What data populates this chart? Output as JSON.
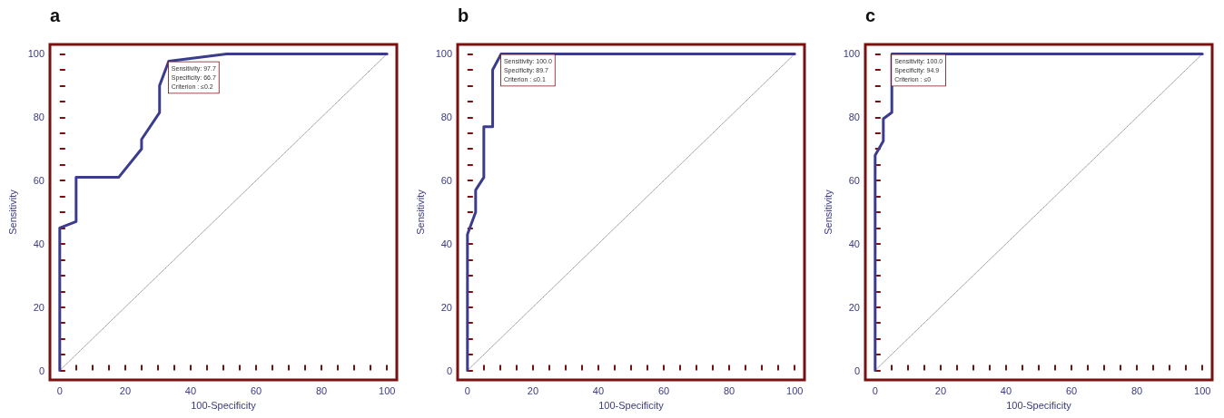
{
  "chart_data": [
    {
      "type": "line",
      "title": "a",
      "xlabel": "100-Specificity",
      "ylabel": "Sensitivity",
      "xlim": [
        -3,
        103
      ],
      "ylim": [
        -3,
        103
      ],
      "marker": "none",
      "line_style": "solid",
      "grid": false,
      "xticks": [
        0,
        {
          "value": 5,
          "label": null
        },
        {
          "value": 10,
          "label": null
        },
        {
          "value": 15,
          "label": null
        },
        20,
        {
          "value": 25,
          "label": null
        },
        {
          "value": 30,
          "label": null
        },
        {
          "value": 35,
          "label": null
        },
        40,
        {
          "value": 45,
          "label": null
        },
        {
          "value": 50,
          "label": null
        },
        {
          "value": 55,
          "label": null
        },
        60,
        {
          "value": 65,
          "label": null
        },
        {
          "value": 70,
          "label": null
        },
        {
          "value": 75,
          "label": null
        },
        80,
        {
          "value": 85,
          "label": null
        },
        {
          "value": 90,
          "label": null
        },
        {
          "value": 95,
          "label": null
        },
        100
      ],
      "yticks": [
        0,
        {
          "value": 5,
          "label": null
        },
        {
          "value": 10,
          "label": null
        },
        {
          "value": 15,
          "label": null
        },
        20,
        {
          "value": 25,
          "label": null
        },
        {
          "value": 30,
          "label": null
        },
        {
          "value": 35,
          "label": null
        },
        40,
        {
          "value": 45,
          "label": null
        },
        {
          "value": 50,
          "label": null
        },
        {
          "value": 55,
          "label": null
        },
        60,
        {
          "value": 65,
          "label": null
        },
        {
          "value": 70,
          "label": null
        },
        {
          "value": 75,
          "label": null
        },
        80,
        {
          "value": 85,
          "label": null
        },
        {
          "value": 90,
          "label": null
        },
        {
          "value": 95,
          "label": null
        },
        100
      ],
      "series": [
        {
          "color": "#3c3c8f",
          "x": [
            0,
            0,
            5,
            5,
            18,
            25,
            25,
            30.5,
            30.5,
            33.3,
            51,
            100
          ],
          "values": [
            0,
            45,
            47,
            61,
            61,
            70,
            73,
            81.5,
            90,
            97.7,
            100,
            100
          ]
        },
        {
          "color": "#9a9a9a",
          "line_style": "dotted",
          "x": [
            0,
            100
          ],
          "values": [
            0,
            100
          ]
        }
      ],
      "annotations": [
        {
          "text": "Sensitivity: 97.7\nSpecificity: 66.7\nCriterion : ≤0.2",
          "x": 33.3,
          "y": 97.7
        }
      ]
    },
    {
      "type": "line",
      "title": "b",
      "xlabel": "100-Specificity",
      "ylabel": "Sensitivity",
      "xlim": [
        -3,
        103
      ],
      "ylim": [
        -3,
        103
      ],
      "marker": "none",
      "line_style": "solid",
      "grid": false,
      "xticks": [
        0,
        {
          "value": 5,
          "label": null
        },
        {
          "value": 10,
          "label": null
        },
        {
          "value": 15,
          "label": null
        },
        20,
        {
          "value": 25,
          "label": null
        },
        {
          "value": 30,
          "label": null
        },
        {
          "value": 35,
          "label": null
        },
        40,
        {
          "value": 45,
          "label": null
        },
        {
          "value": 50,
          "label": null
        },
        {
          "value": 55,
          "label": null
        },
        60,
        {
          "value": 65,
          "label": null
        },
        {
          "value": 70,
          "label": null
        },
        {
          "value": 75,
          "label": null
        },
        80,
        {
          "value": 85,
          "label": null
        },
        {
          "value": 90,
          "label": null
        },
        {
          "value": 95,
          "label": null
        },
        100
      ],
      "yticks": [
        0,
        {
          "value": 5,
          "label": null
        },
        {
          "value": 10,
          "label": null
        },
        {
          "value": 15,
          "label": null
        },
        20,
        {
          "value": 25,
          "label": null
        },
        {
          "value": 30,
          "label": null
        },
        {
          "value": 35,
          "label": null
        },
        40,
        {
          "value": 45,
          "label": null
        },
        {
          "value": 50,
          "label": null
        },
        {
          "value": 55,
          "label": null
        },
        60,
        {
          "value": 65,
          "label": null
        },
        {
          "value": 70,
          "label": null
        },
        {
          "value": 75,
          "label": null
        },
        80,
        {
          "value": 85,
          "label": null
        },
        {
          "value": 90,
          "label": null
        },
        {
          "value": 95,
          "label": null
        },
        100
      ],
      "series": [
        {
          "color": "#3c3c8f",
          "x": [
            0,
            0,
            2.5,
            2.5,
            5,
            5,
            7.7,
            7.7,
            10.3,
            100
          ],
          "values": [
            0,
            43,
            50,
            57,
            61,
            77,
            77,
            95,
            100,
            100
          ]
        },
        {
          "color": "#9a9a9a",
          "line_style": "dotted",
          "x": [
            0,
            100
          ],
          "values": [
            0,
            100
          ]
        }
      ],
      "annotations": [
        {
          "text": "Sensitivity: 100.0\nSpecificity: 89.7\nCriterion : ≤0.1",
          "x": 10.3,
          "y": 100
        }
      ]
    },
    {
      "type": "line",
      "title": "c",
      "xlabel": "100-Specificity",
      "ylabel": "Sensitivity",
      "xlim": [
        -3,
        103
      ],
      "ylim": [
        -3,
        103
      ],
      "marker": "none",
      "line_style": "solid",
      "grid": false,
      "xticks": [
        0,
        {
          "value": 5,
          "label": null
        },
        {
          "value": 10,
          "label": null
        },
        {
          "value": 15,
          "label": null
        },
        20,
        {
          "value": 25,
          "label": null
        },
        {
          "value": 30,
          "label": null
        },
        {
          "value": 35,
          "label": null
        },
        40,
        {
          "value": 45,
          "label": null
        },
        {
          "value": 50,
          "label": null
        },
        {
          "value": 55,
          "label": null
        },
        60,
        {
          "value": 65,
          "label": null
        },
        {
          "value": 70,
          "label": null
        },
        {
          "value": 75,
          "label": null
        },
        80,
        {
          "value": 85,
          "label": null
        },
        {
          "value": 90,
          "label": null
        },
        {
          "value": 95,
          "label": null
        },
        100
      ],
      "yticks": [
        0,
        {
          "value": 5,
          "label": null
        },
        {
          "value": 10,
          "label": null
        },
        {
          "value": 15,
          "label": null
        },
        20,
        {
          "value": 25,
          "label": null
        },
        {
          "value": 30,
          "label": null
        },
        {
          "value": 35,
          "label": null
        },
        40,
        {
          "value": 45,
          "label": null
        },
        {
          "value": 50,
          "label": null
        },
        {
          "value": 55,
          "label": null
        },
        60,
        {
          "value": 65,
          "label": null
        },
        {
          "value": 70,
          "label": null
        },
        {
          "value": 75,
          "label": null
        },
        80,
        {
          "value": 85,
          "label": null
        },
        {
          "value": 90,
          "label": null
        },
        {
          "value": 95,
          "label": null
        },
        100
      ],
      "series": [
        {
          "color": "#3c3c8f",
          "x": [
            0,
            0,
            2.5,
            2.5,
            5.1,
            5.1,
            100
          ],
          "values": [
            0,
            68,
            72.5,
            79.5,
            81.5,
            100,
            100
          ]
        },
        {
          "color": "#9a9a9a",
          "line_style": "dotted",
          "x": [
            0,
            100
          ],
          "values": [
            0,
            100
          ]
        }
      ],
      "annotations": [
        {
          "text": "Sensitivity: 100.0\nSpecificity: 94.9\nCriterion : ≤0",
          "x": 5.1,
          "y": 100
        }
      ]
    }
  ]
}
